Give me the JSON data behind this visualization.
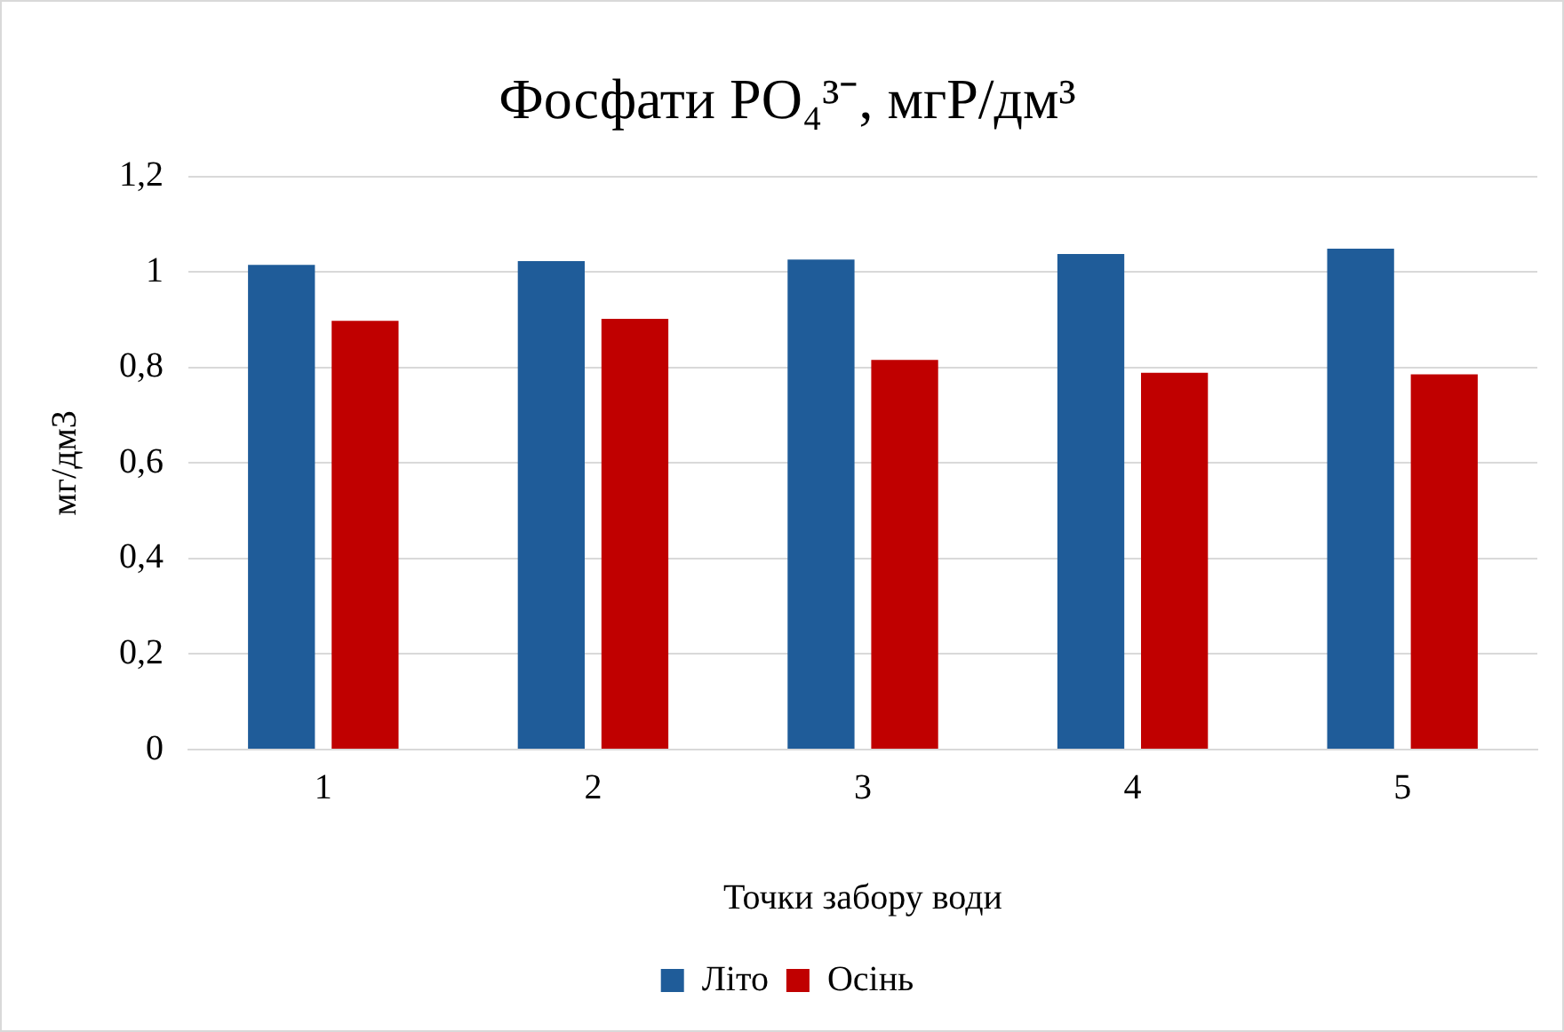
{
  "chart_data": {
    "type": "bar",
    "title": "Фосфати PO₄³⁻, мгP/дм³",
    "xlabel": "Точки забору води",
    "ylabel": "мг/дм3",
    "categories": [
      "1",
      "2",
      "3",
      "4",
      "5"
    ],
    "series": [
      {
        "name": "Літо",
        "color": "#1f5c99",
        "values": [
          1.015,
          1.023,
          1.026,
          1.038,
          1.049
        ]
      },
      {
        "name": "Осінь",
        "color": "#c00000",
        "values": [
          0.898,
          0.902,
          0.816,
          0.789,
          0.786
        ]
      }
    ],
    "ylim": [
      0,
      1.2
    ],
    "yticks": [
      {
        "value": 0,
        "label": "0"
      },
      {
        "value": 0.2,
        "label": "0,2"
      },
      {
        "value": 0.4,
        "label": "0,4"
      },
      {
        "value": 0.6,
        "label": "0,6"
      },
      {
        "value": 0.8,
        "label": "0,8"
      },
      {
        "value": 1,
        "label": "1"
      },
      {
        "value": 1.2,
        "label": "1,2"
      }
    ],
    "grid": "y",
    "legend": "bottom"
  }
}
